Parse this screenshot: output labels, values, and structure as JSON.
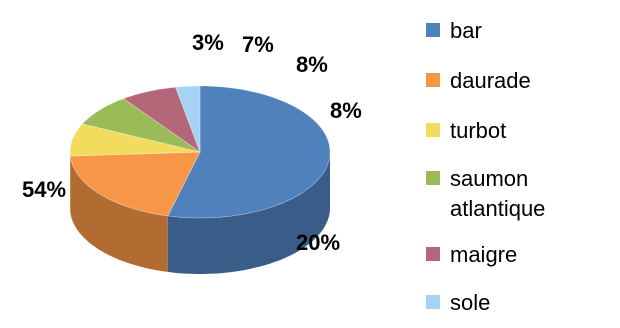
{
  "chart_data": {
    "type": "pie",
    "three_d": true,
    "categories": [
      "bar",
      "daurade",
      "turbot",
      "saumon atlantique",
      "maigre",
      "sole"
    ],
    "values": [
      54,
      20,
      8,
      8,
      7,
      3
    ],
    "labels": [
      "54%",
      "20%",
      "8%",
      "8%",
      "7%",
      "3%"
    ],
    "colors": [
      "#4f81bd",
      "#f79646",
      "#f2dc5d",
      "#9bbb59",
      "#b5677a",
      "#a6d3f5"
    ],
    "legend_position": "right",
    "title": ""
  }
}
